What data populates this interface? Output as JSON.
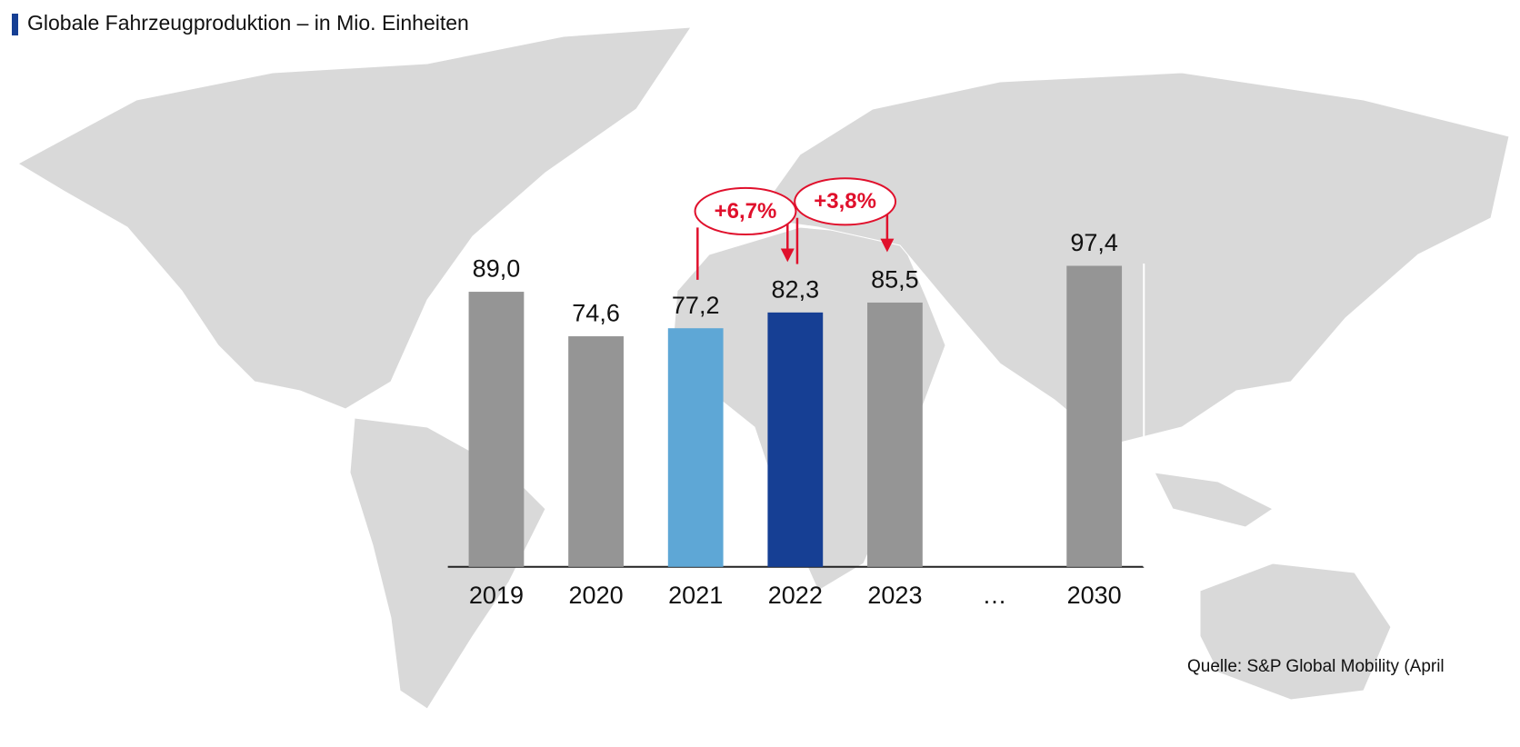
{
  "chart_data": {
    "type": "bar",
    "title": "Globale Fahrzeugproduktion – in Mio. Einheiten",
    "categories": [
      "2019",
      "2020",
      "2021",
      "2022",
      "2023",
      "…",
      "2030"
    ],
    "values": [
      89.0,
      74.6,
      77.2,
      82.3,
      85.5,
      null,
      97.4
    ],
    "value_labels": [
      "89,0",
      "74,6",
      "77,2",
      "82,3",
      "85,5",
      null,
      "97,4"
    ],
    "colors": [
      "#959595",
      "#959595",
      "#5ea7d6",
      "#163f94",
      "#959595",
      null,
      "#959595"
    ],
    "ylim": [
      0,
      100
    ],
    "annotations": [
      "+6,7%",
      "+3,8%"
    ],
    "annotation_color": "#e0102c",
    "source": "Quelle: S&P Global Mobility (April"
  }
}
